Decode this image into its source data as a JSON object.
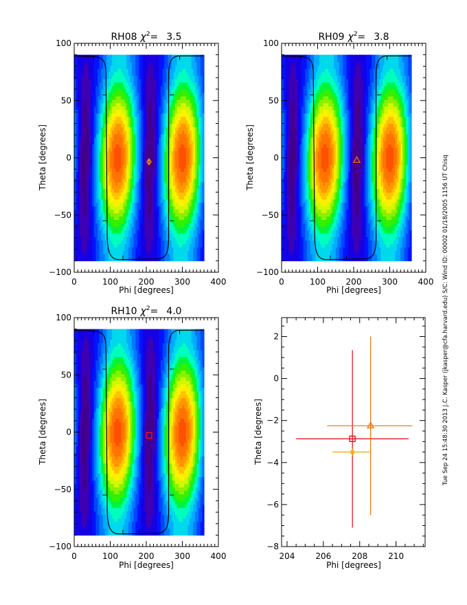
{
  "side_text": "Tue Sep 24 15:48:30 2013   J.C. Kasper (jkasper@cfa.harvard.edu)   S/C: Wind ID: 00002 01/18/2005  1156 UT Chisq",
  "chart_data": [
    {
      "type": "heatmap",
      "title_prefix": "RH08",
      "chi_symbol": "χ",
      "chi_sup": "2",
      "chi_eq": "=",
      "chi_value": "3.5",
      "xlabel": "Phi [degrees]",
      "ylabel": "Theta [degrees]",
      "xlim": [
        0,
        400
      ],
      "ylim": [
        -100,
        100
      ],
      "xticks": [
        "0",
        "100",
        "200",
        "300",
        "400"
      ],
      "yticks": [
        "-100",
        "-50",
        "0",
        "50",
        "100"
      ],
      "data_extent": {
        "phi": [
          0,
          360
        ],
        "theta": [
          -90,
          90
        ]
      },
      "colormap": "rainbow (blue=low, red=high)",
      "minima_phi": [
        30,
        210
      ],
      "maxima_phi": [
        120,
        300
      ],
      "marker": {
        "shape": "diamond",
        "phi": 207.6,
        "theta": -3.5,
        "color": "#ff9f00"
      }
    },
    {
      "type": "heatmap",
      "title_prefix": "RH09",
      "chi_symbol": "χ",
      "chi_sup": "2",
      "chi_eq": "=",
      "chi_value": "3.8",
      "xlabel": "Phi [degrees]",
      "ylabel": "Theta [degrees]",
      "xlim": [
        0,
        400
      ],
      "ylim": [
        -100,
        100
      ],
      "xticks": [
        "0",
        "100",
        "200",
        "300",
        "400"
      ],
      "yticks": [
        "-100",
        "-50",
        "0",
        "50",
        "100"
      ],
      "data_extent": {
        "phi": [
          0,
          360
        ],
        "theta": [
          -90,
          90
        ]
      },
      "colormap": "rainbow (blue=low, red=high)",
      "minima_phi": [
        30,
        210
      ],
      "maxima_phi": [
        120,
        300
      ],
      "marker": {
        "shape": "triangle",
        "phi": 208.6,
        "theta": -2.25,
        "color": "#ff6a00"
      }
    },
    {
      "type": "heatmap",
      "title_prefix": "RH10",
      "chi_symbol": "χ",
      "chi_sup": "2",
      "chi_eq": "=",
      "chi_value": "4.0",
      "xlabel": "Phi [degrees]",
      "ylabel": "Theta [degrees]",
      "xlim": [
        0,
        400
      ],
      "ylim": [
        -100,
        100
      ],
      "xticks": [
        "0",
        "100",
        "200",
        "300",
        "400"
      ],
      "yticks": [
        "-100",
        "-50",
        "0",
        "50",
        "100"
      ],
      "data_extent": {
        "phi": [
          0,
          360
        ],
        "theta": [
          -90,
          90
        ]
      },
      "colormap": "rainbow (blue=low, red=high)",
      "minima_phi": [
        30,
        210
      ],
      "maxima_phi": [
        120,
        300
      ],
      "marker": {
        "shape": "square",
        "phi": 207.6,
        "theta": -2.87,
        "color": "#ff1010"
      }
    },
    {
      "type": "scatter",
      "title": "",
      "xlabel": "Phi [degrees]",
      "ylabel": "Theta [degrees]",
      "xlim": [
        203.7,
        211.6
      ],
      "ylim": [
        -8,
        2.9
      ],
      "xticks": [
        "204",
        "206",
        "208",
        "210"
      ],
      "xtick_values": [
        204,
        206,
        208,
        210
      ],
      "yticks": [
        "-8",
        "-6",
        "-4",
        "-2",
        "0",
        "2"
      ],
      "ytick_values": [
        -8,
        -6,
        -4,
        -2,
        0,
        2
      ],
      "series": [
        {
          "name": "RH10",
          "shape": "square",
          "color": "#e8000b",
          "phi": 207.6,
          "theta": -2.87,
          "phi_err": [
            204.5,
            210.7
          ],
          "theta_err": [
            -7.1,
            1.35
          ]
        },
        {
          "name": "RH09",
          "shape": "triangle",
          "color": "#f07000",
          "phi": 208.6,
          "theta": -2.25,
          "phi_err": [
            206.2,
            210.9
          ],
          "theta_err": [
            -6.5,
            2.0
          ]
        },
        {
          "name": "RH08",
          "shape": "diamond",
          "color": "#f0a800",
          "phi": 207.6,
          "theta": -3.5,
          "phi_err": [
            206.5,
            208.6
          ],
          "theta_err": [
            -3.5,
            -3.5
          ]
        }
      ]
    }
  ]
}
